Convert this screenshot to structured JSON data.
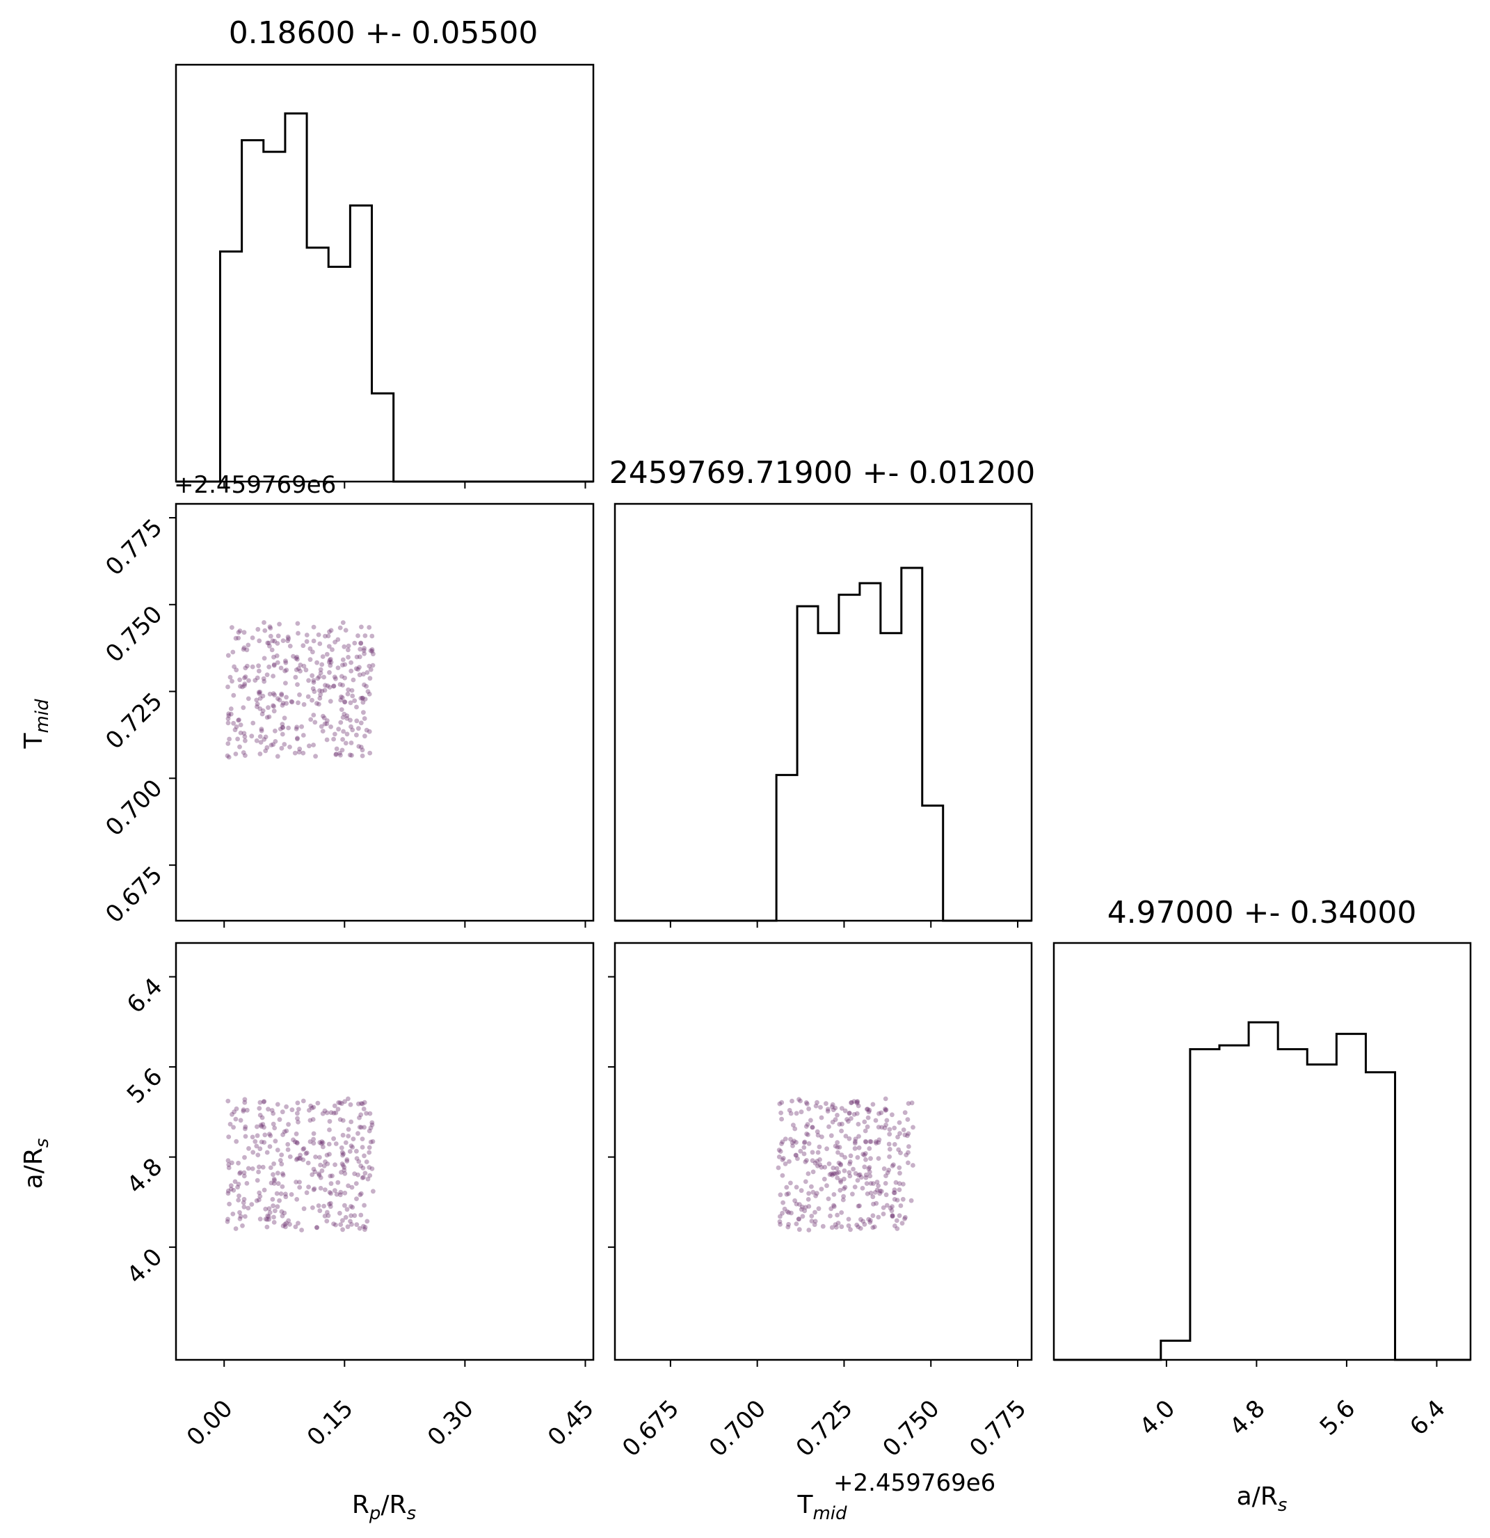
{
  "chart_data": {
    "type": "corner",
    "parameters": [
      {
        "key": "rp",
        "label_main": "R",
        "label_sub": "p",
        "label_mid": "/R",
        "label_sub2": "s"
      },
      {
        "key": "tmid",
        "label_main": "T",
        "label_sub": "mid",
        "label_mid": "",
        "label_sub2": ""
      },
      {
        "key": "ars",
        "label_main": "a/R",
        "label_sub": "s",
        "label_mid": "",
        "label_sub2": ""
      }
    ],
    "offset_text": "+2.459769e6",
    "titles": [
      "0.18600 +- 0.05500",
      "2459769.71900 +- 0.01200",
      "4.97000 +- 0.34000"
    ],
    "ranges": {
      "rp": [
        -0.06,
        0.46
      ],
      "tmid": [
        0.659,
        0.779
      ],
      "ars": [
        3.0,
        6.7
      ]
    },
    "ticks": {
      "rp": {
        "values": [
          0.0,
          0.15,
          0.3,
          0.45
        ],
        "labels": [
          "0.00",
          "0.15",
          "0.30",
          "0.45"
        ]
      },
      "tmid": {
        "values": [
          0.675,
          0.7,
          0.725,
          0.75,
          0.775
        ],
        "labels": [
          "0.675",
          "0.700",
          "0.725",
          "0.750",
          "0.775"
        ]
      },
      "ars": {
        "values": [
          4.0,
          4.8,
          5.6,
          6.4
        ],
        "labels": [
          "4.0",
          "4.8",
          "5.6",
          "6.4"
        ]
      }
    },
    "histograms": {
      "rp": {
        "edges": [
          -0.005,
          0.022,
          0.049,
          0.076,
          0.103,
          0.13,
          0.157,
          0.184,
          0.211
        ],
        "heights": [
          0.6,
          0.89,
          0.86,
          0.96,
          0.61,
          0.56,
          0.72,
          0.23
        ]
      },
      "tmid": {
        "edges": [
          0.7055,
          0.7115,
          0.7175,
          0.7235,
          0.7295,
          0.7355,
          0.7415,
          0.7475,
          0.7535
        ],
        "heights": [
          0.38,
          0.82,
          0.75,
          0.85,
          0.88,
          0.75,
          0.92,
          0.3
        ]
      },
      "ars": {
        "edges": [
          3.95,
          4.21,
          4.47,
          4.73,
          4.99,
          5.25,
          5.51,
          5.77,
          6.03
        ],
        "heights": [
          0.05,
          0.81,
          0.82,
          0.88,
          0.81,
          0.77,
          0.85,
          0.75
        ]
      }
    },
    "scatter_density": {
      "rp": [
        0.004,
        0.186
      ],
      "tmid": [
        0.706,
        0.745
      ],
      "ars": [
        4.15,
        5.32
      ],
      "n_points": 360,
      "color": "#6b2f6e"
    },
    "hist_color": "#000000",
    "grid": false
  }
}
